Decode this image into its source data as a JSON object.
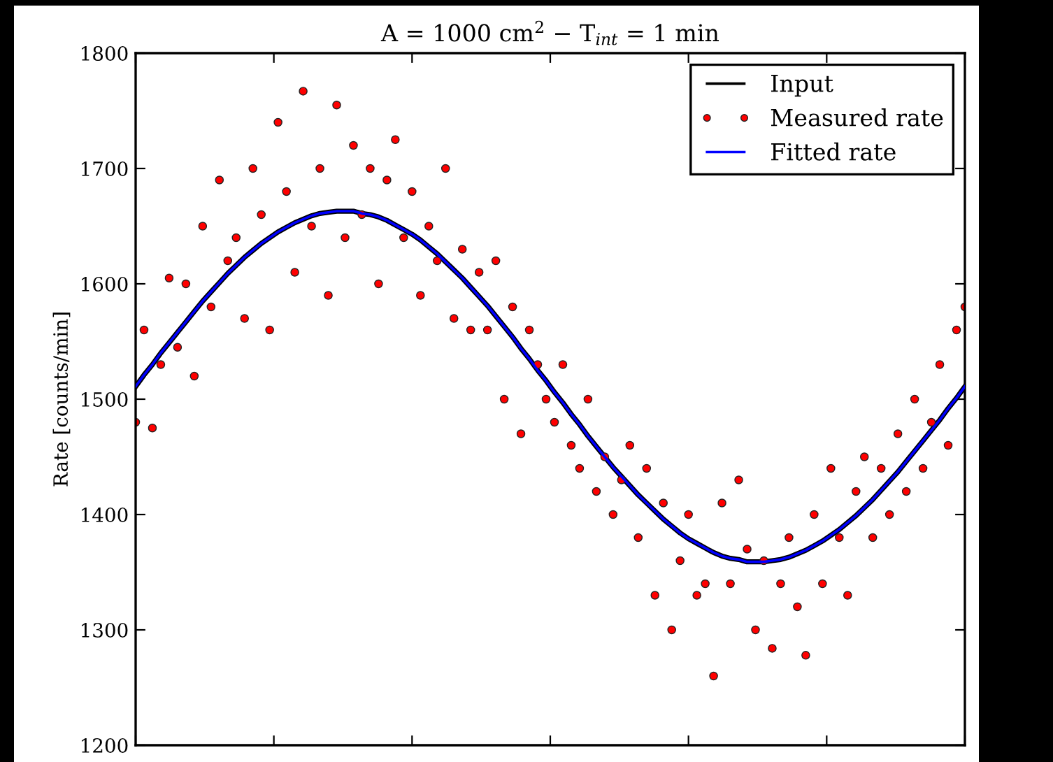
{
  "chart_data": {
    "type": "scatter",
    "title": "A = 1000 cm$^{2}$ − T$_{int}$ = 1 min",
    "ylabel": "Rate [counts/min]",
    "categories": [
      null,
      null,
      null,
      null,
      null,
      null,
      null,
      null,
      null,
      null,
      null,
      null,
      null,
      null,
      null,
      null,
      null,
      null,
      null,
      null,
      null,
      null,
      null,
      null,
      null,
      null,
      null,
      null,
      null,
      null,
      null,
      null,
      null,
      null,
      null,
      null,
      null,
      null,
      null,
      null,
      null,
      null,
      null,
      null,
      null,
      null,
      null,
      null,
      null,
      null,
      null,
      null,
      null,
      null,
      null,
      null,
      null,
      null,
      null,
      null,
      null,
      null,
      null,
      null,
      null,
      null,
      null,
      null,
      null,
      null,
      null,
      null,
      null,
      null,
      null,
      null,
      null,
      null,
      null,
      null,
      null,
      null,
      null,
      null,
      null,
      null,
      null,
      null,
      null,
      null,
      null,
      null,
      null,
      null,
      null,
      null,
      null,
      null,
      null,
      null
    ],
    "series": [
      {
        "name": "Input",
        "type": "line",
        "color": "#000000",
        "values": [
          1511,
          1521,
          1530,
          1540,
          1549,
          1558,
          1567,
          1576,
          1585,
          1593,
          1601,
          1609,
          1616,
          1623,
          1629,
          1635,
          1640,
          1645,
          1649,
          1653,
          1656,
          1659,
          1661,
          1662,
          1663,
          1663,
          1663,
          1661,
          1660,
          1658,
          1655,
          1651,
          1647,
          1643,
          1638,
          1632,
          1626,
          1619,
          1612,
          1605,
          1597,
          1589,
          1581,
          1572,
          1563,
          1554,
          1544,
          1535,
          1525,
          1516,
          1506,
          1497,
          1487,
          1478,
          1468,
          1459,
          1450,
          1441,
          1433,
          1425,
          1417,
          1410,
          1403,
          1396,
          1390,
          1384,
          1379,
          1375,
          1371,
          1367,
          1364,
          1362,
          1361,
          1359,
          1359,
          1359,
          1360,
          1361,
          1363,
          1366,
          1369,
          1373,
          1377,
          1382,
          1387,
          1393,
          1399,
          1406,
          1413,
          1421,
          1429,
          1437,
          1446,
          1455,
          1464,
          1473,
          1482,
          1492,
          1501,
          1511
        ]
      },
      {
        "name": "Measured rate",
        "color": "#ff0000",
        "marker": "circle",
        "values": [
          1480,
          1560,
          1475,
          1530,
          1605,
          1545,
          1600,
          1520,
          1650,
          1580,
          1690,
          1620,
          1640,
          1570,
          1700,
          1660,
          1560,
          1740,
          1680,
          1610,
          1767,
          1650,
          1700,
          1590,
          1755,
          1640,
          1720,
          1660,
          1700,
          1600,
          1690,
          1725,
          1640,
          1680,
          1590,
          1650,
          1620,
          1700,
          1570,
          1630,
          1560,
          1610,
          1560,
          1620,
          1500,
          1580,
          1470,
          1560,
          1530,
          1500,
          1480,
          1530,
          1460,
          1440,
          1500,
          1420,
          1450,
          1400,
          1430,
          1460,
          1380,
          1440,
          1330,
          1410,
          1300,
          1360,
          1400,
          1330,
          1340,
          1260,
          1410,
          1340,
          1430,
          1370,
          1300,
          1360,
          1284,
          1340,
          1380,
          1320,
          1278,
          1400,
          1340,
          1440,
          1380,
          1330,
          1420,
          1450,
          1380,
          1440,
          1400,
          1470,
          1420,
          1500,
          1440,
          1480,
          1530,
          1460,
          1560,
          1580
        ]
      },
      {
        "name": "Fitted rate",
        "type": "line",
        "color": "#0000ff",
        "values": [
          1511,
          1521,
          1530,
          1540,
          1549,
          1558,
          1567,
          1576,
          1585,
          1593,
          1601,
          1609,
          1616,
          1623,
          1629,
          1635,
          1640,
          1645,
          1649,
          1653,
          1656,
          1659,
          1661,
          1662,
          1663,
          1663,
          1663,
          1661,
          1660,
          1658,
          1655,
          1651,
          1647,
          1643,
          1638,
          1632,
          1626,
          1619,
          1612,
          1605,
          1597,
          1589,
          1581,
          1572,
          1563,
          1554,
          1544,
          1535,
          1525,
          1516,
          1506,
          1497,
          1487,
          1478,
          1468,
          1459,
          1450,
          1441,
          1433,
          1425,
          1417,
          1410,
          1403,
          1396,
          1390,
          1384,
          1379,
          1375,
          1371,
          1367,
          1364,
          1362,
          1361,
          1359,
          1359,
          1359,
          1360,
          1361,
          1363,
          1366,
          1369,
          1373,
          1377,
          1382,
          1387,
          1393,
          1399,
          1406,
          1413,
          1421,
          1429,
          1437,
          1446,
          1455,
          1464,
          1473,
          1482,
          1492,
          1501,
          1511
        ]
      }
    ],
    "ylim": [
      1200,
      1800
    ],
    "yticks": [
      1200,
      1300,
      1400,
      1500,
      1600,
      1700,
      1800
    ],
    "tick_labels": "y",
    "grid": false,
    "legend": "top right"
  }
}
